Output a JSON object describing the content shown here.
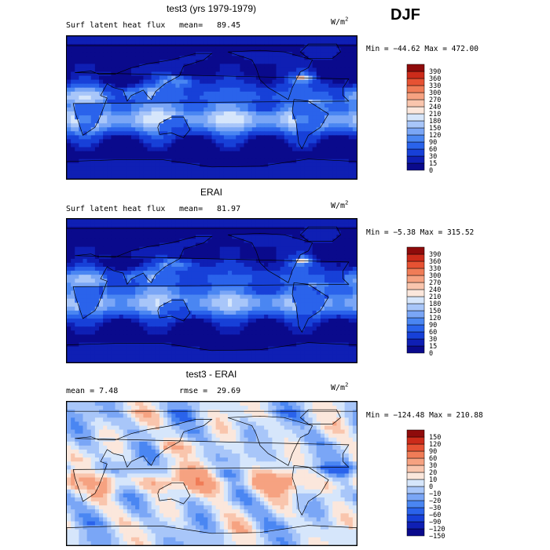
{
  "season": "DJF",
  "panels": [
    {
      "id": "model",
      "title": "test3 (yrs 1979-1979)",
      "variable": "Surf latent heat flux",
      "left_stat": "",
      "mean_label": "mean=",
      "mean_value": "89.45",
      "units_base": "W/m",
      "units_exp": "2",
      "minmax": "Min = −44.62 Max = 472.00"
    },
    {
      "id": "obs",
      "title": "ERAI",
      "variable": "Surf latent heat flux",
      "left_stat": "",
      "mean_label": "mean=",
      "mean_value": "81.97",
      "units_base": "W/m",
      "units_exp": "2",
      "minmax": "Min = −5.38 Max = 315.52"
    },
    {
      "id": "diff",
      "title": "test3 - ERAI",
      "variable": "mean =     7.48",
      "left_stat": "",
      "mean_label": "rmse =",
      "mean_value": "29.69",
      "units_base": "W/m",
      "units_exp": "2",
      "minmax": "Min = −124.48 Max = 210.88"
    }
  ],
  "chart_data": [
    {
      "type": "heatmap",
      "title": "test3 (yrs 1979-1979)",
      "variable": "Surf latent heat flux",
      "units": "W/m2",
      "mean": 89.45,
      "min": -44.62,
      "max": 472.0,
      "colorbar_levels": [
        0,
        15,
        30,
        60,
        90,
        120,
        150,
        180,
        210,
        240,
        270,
        300,
        330,
        360,
        390
      ],
      "colorbar_colors": [
        "#0a0a8c",
        "#0f1fb4",
        "#1740d8",
        "#2a63eb",
        "#4a86f2",
        "#7aa6f6",
        "#a8c6f9",
        "#d6e6fb",
        "#fbe7dc",
        "#f9c5ad",
        "#f6a281",
        "#f07c57",
        "#e65233",
        "#cc2b1a",
        "#8f0b0b"
      ],
      "projection": "Cylindrical equidistant, 0–360E, 90S–90N"
    },
    {
      "type": "heatmap",
      "title": "ERAI",
      "variable": "Surf latent heat flux",
      "units": "W/m2",
      "mean": 81.97,
      "min": -5.38,
      "max": 315.52,
      "colorbar_levels": [
        0,
        15,
        30,
        60,
        90,
        120,
        150,
        180,
        210,
        240,
        270,
        300,
        330,
        360,
        390
      ],
      "colorbar_colors": [
        "#0a0a8c",
        "#0f1fb4",
        "#1740d8",
        "#2a63eb",
        "#4a86f2",
        "#7aa6f6",
        "#a8c6f9",
        "#d6e6fb",
        "#fbe7dc",
        "#f9c5ad",
        "#f6a281",
        "#f07c57",
        "#e65233",
        "#cc2b1a",
        "#8f0b0b"
      ],
      "projection": "Cylindrical equidistant, 0–360E, 90S–90N"
    },
    {
      "type": "heatmap",
      "title": "test3 - ERAI",
      "units": "W/m2",
      "mean": 7.48,
      "rmse": 29.69,
      "min": -124.48,
      "max": 210.88,
      "colorbar_levels": [
        -150,
        -120,
        -90,
        -60,
        -30,
        -20,
        -10,
        0,
        10,
        20,
        30,
        60,
        90,
        120,
        150
      ],
      "colorbar_colors": [
        "#0a0a8c",
        "#0f1fb4",
        "#1740d8",
        "#2a63eb",
        "#4a86f2",
        "#7aa6f6",
        "#a8c6f9",
        "#d6e6fb",
        "#fbe7dc",
        "#f9c5ad",
        "#f6a281",
        "#f07c57",
        "#e65233",
        "#cc2b1a",
        "#8f0b0b"
      ],
      "projection": "Cylindrical equidistant, 0–360E, 90S–90N"
    }
  ]
}
